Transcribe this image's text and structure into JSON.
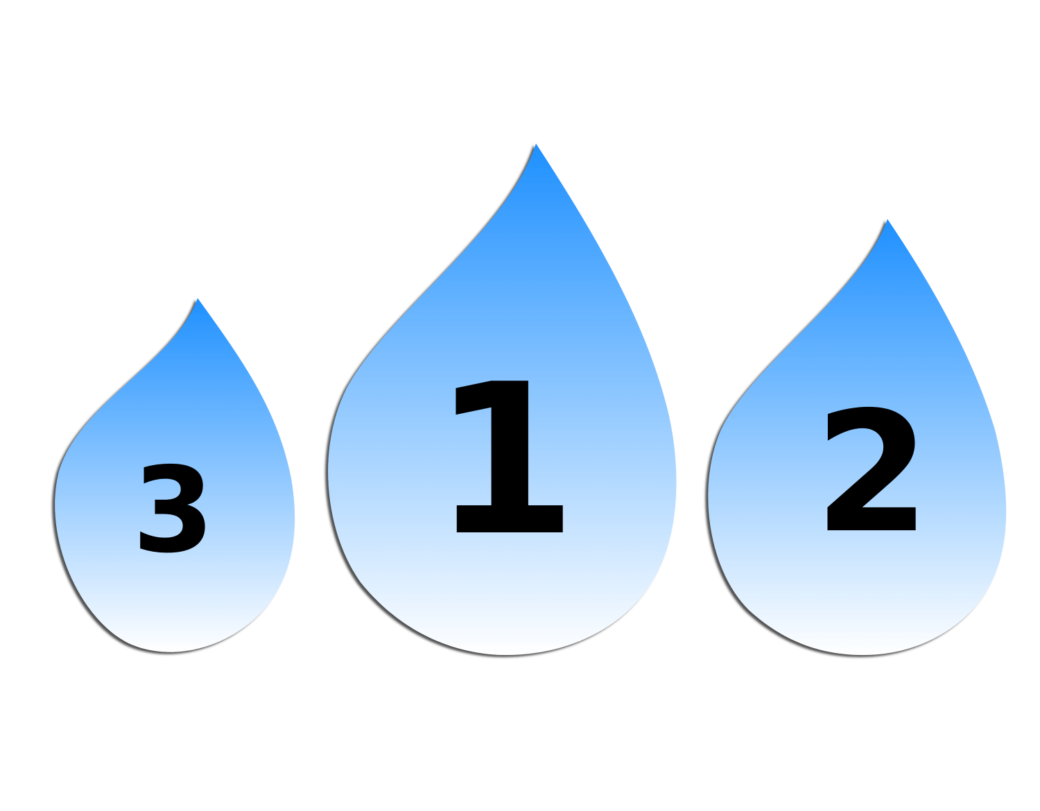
{
  "colors": {
    "background": "#ffffff",
    "drop_top": "#1e90ff",
    "drop_bottom": "#ffffff",
    "shadow": "#444444",
    "label": "#000000"
  },
  "drops": [
    {
      "label": "3",
      "icon": "water-drop-icon"
    },
    {
      "label": "1",
      "icon": "water-drop-icon"
    },
    {
      "label": "2",
      "icon": "water-drop-icon"
    }
  ]
}
